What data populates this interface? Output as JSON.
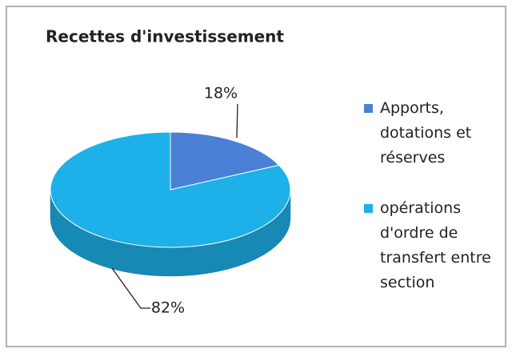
{
  "chart_data": {
    "type": "pie",
    "title": "Recettes d'investissement",
    "categories": [
      "Apports, dotations et réserves",
      "opérations d'ordre de transfert entre section"
    ],
    "values": [
      18,
      82
    ],
    "value_labels": [
      "18%",
      "82%"
    ],
    "colors": [
      "#4a80d6",
      "#1eb0e8"
    ],
    "legend": "right"
  }
}
